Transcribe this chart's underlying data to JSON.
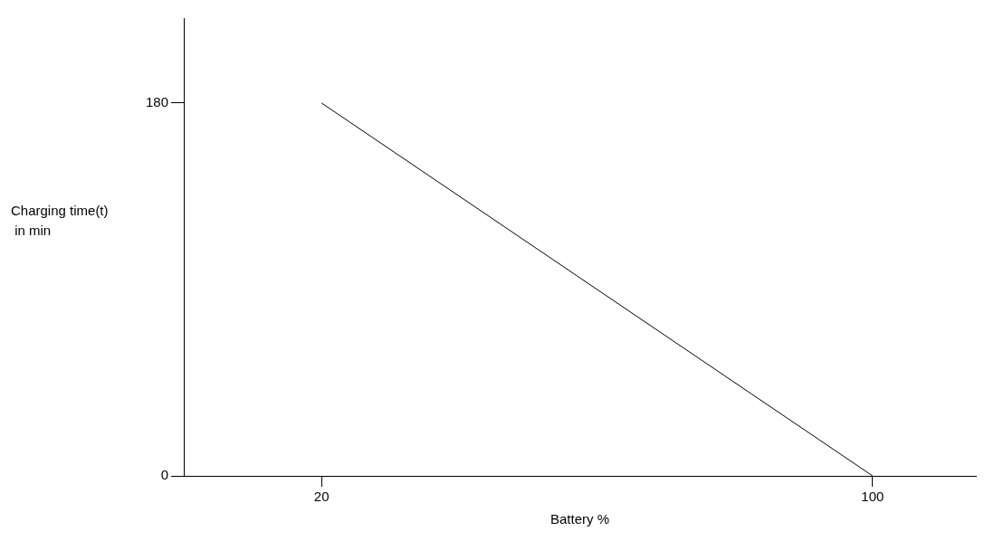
{
  "chart_data": {
    "type": "line",
    "xlabel": "Battery %",
    "ylabel": "Charging time(t)\n in min",
    "x": [
      20,
      100
    ],
    "series": [
      {
        "color": "#000000",
        "values": [
          180,
          0
        ]
      }
    ],
    "xlim": [
      0,
      115
    ],
    "xticks": [
      20,
      100
    ],
    "ylim": [
      0,
      221
    ],
    "yticks": [
      0,
      180
    ],
    "grid": false,
    "legend": false,
    "marker": "none",
    "line_style": "solid"
  }
}
